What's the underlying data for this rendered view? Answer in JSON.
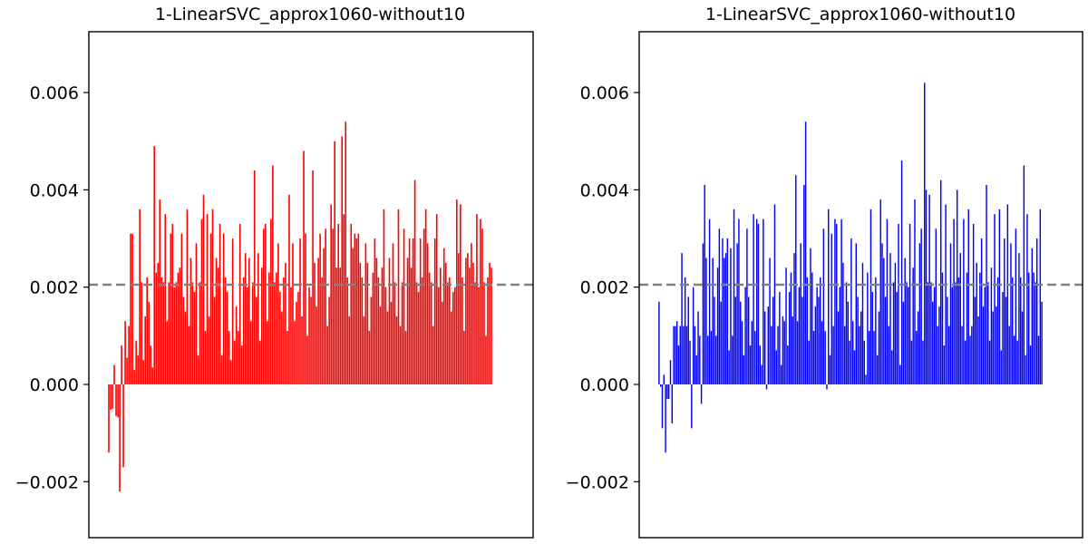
{
  "chart_data": [
    {
      "type": "bar",
      "title": "1-LinearSVC_approx1060-without10",
      "xlabel": "",
      "ylabel": "",
      "ylim": [
        -0.00315,
        0.00725
      ],
      "yticks": [
        -0.002,
        0.0,
        0.002,
        0.004,
        0.006
      ],
      "ytick_labels": [
        "−0.002",
        "0.000",
        "0.002",
        "0.004",
        "0.006"
      ],
      "xticks_visible": false,
      "grid": false,
      "legend": "none",
      "color": "#ff0000",
      "reference_line": {
        "y": 0.00205,
        "style": "dashed",
        "color": "#808080"
      },
      "values": [
        -0.0014,
        -0.00052,
        -0.0005,
        0.0004,
        -0.00065,
        -0.00068,
        -0.0022,
        0.0008,
        -0.0017,
        0.0013,
        0.00055,
        0.0012,
        0.0031,
        0.0031,
        0.0003,
        0.0009,
        0.0006,
        0.0036,
        0.0021,
        0.0005,
        0.0014,
        0.0022,
        0.0017,
        0.0008,
        0.00035,
        0.0049,
        0.0023,
        0.0025,
        0.0038,
        0.0022,
        0.0021,
        0.0035,
        0.0013,
        0.0021,
        0.0031,
        0.0033,
        0.002,
        0.0021,
        0.0023,
        0.0024,
        0.0031,
        0.0018,
        0.0015,
        0.0036,
        0.0012,
        0.0026,
        0.0021,
        0.0019,
        0.0029,
        0.0006,
        0.0021,
        0.0034,
        0.0039,
        0.0011,
        0.0035,
        0.0014,
        0.0031,
        0.0036,
        0.0018,
        0.0026,
        0.0024,
        0.0033,
        0.0006,
        0.0031,
        0.0022,
        0.0019,
        0.0011,
        0.0005,
        0.003,
        0.0009,
        0.0016,
        0.0011,
        0.0033,
        0.0008,
        0.0022,
        0.0027,
        0.002,
        0.0026,
        0.0013,
        0.0021,
        0.0044,
        0.0018,
        0.0027,
        0.0009,
        0.0024,
        0.0032,
        0.0033,
        0.0013,
        0.0023,
        0.0034,
        0.0045,
        0.0021,
        0.0023,
        0.0029,
        0.0019,
        0.0015,
        0.0022,
        0.0025,
        0.0011,
        0.0039,
        0.002,
        0.0029,
        0.0013,
        0.0017,
        0.0019,
        0.003,
        0.0014,
        0.0048,
        0.0031,
        0.001,
        0.002,
        0.0018,
        0.0044,
        0.0025,
        0.0016,
        0.0026,
        0.0031,
        0.0022,
        0.0028,
        0.0032,
        0.0012,
        0.0018,
        0.0037,
        0.0032,
        0.005,
        0.0024,
        0.0033,
        0.0024,
        0.0051,
        0.0035,
        0.0054,
        0.0022,
        0.0014,
        0.0033,
        0.0028,
        0.0031,
        0.003,
        0.0031,
        0.0025,
        0.0022,
        0.0014,
        0.0029,
        0.0025,
        0.0011,
        0.0018,
        0.0023,
        0.003,
        0.0026,
        0.0022,
        0.0016,
        0.0024,
        0.0036,
        0.002,
        0.0015,
        0.0026,
        0.0017,
        0.0029,
        0.0021,
        0.0014,
        0.0036,
        0.0012,
        0.0021,
        0.0032,
        0.0011,
        0.0026,
        0.003,
        0.0024,
        0.003,
        0.0042,
        0.0021,
        0.0019,
        0.003,
        0.0022,
        0.0032,
        0.0036,
        0.0029,
        0.0023,
        0.0021,
        0.0012,
        0.003,
        0.0035,
        0.002,
        0.0024,
        0.0017,
        0.0028,
        0.0025,
        0.0021,
        0.0022,
        0.0015,
        0.0019,
        0.002,
        0.0038,
        0.0027,
        0.0037,
        0.0022,
        0.0011,
        0.0026,
        0.0027,
        0.0024,
        0.0029,
        0.0025,
        0.0021,
        0.0035,
        0.002,
        0.0034,
        0.0032,
        0.0021,
        0.001,
        0.0022,
        0.0025,
        0.0024
      ]
    },
    {
      "type": "bar",
      "title": "1-LinearSVC_approx1060-without10",
      "xlabel": "",
      "ylabel": "",
      "ylim": [
        -0.00315,
        0.00725
      ],
      "yticks": [
        -0.002,
        0.0,
        0.002,
        0.004,
        0.006
      ],
      "ytick_labels": [
        "−0.002",
        "0.000",
        "0.002",
        "0.004",
        "0.006"
      ],
      "xticks_visible": false,
      "grid": false,
      "legend": "none",
      "color": "#0000ff",
      "reference_line": {
        "y": 0.00205,
        "style": "dashed",
        "color": "#808080"
      },
      "values": [
        0.0017,
        -5e-05,
        -0.0009,
        0.0002,
        -0.0014,
        -0.0003,
        -0.0003,
        0.0005,
        -0.0008,
        0.0012,
        0.0012,
        0.0013,
        0.0008,
        0.0012,
        0.0027,
        0.0012,
        0.0022,
        0.0012,
        0.0018,
        0.0009,
        -0.0009,
        0.002,
        0.0012,
        0.0006,
        0.0015,
        0.001,
        -0.0004,
        0.0029,
        0.0041,
        0.0026,
        0.001,
        0.0034,
        0.0011,
        0.0026,
        0.0018,
        0.001,
        0.0024,
        0.0032,
        0.0017,
        0.003,
        0.0026,
        0.0027,
        0.003,
        0.0007,
        0.0028,
        0.001,
        0.0036,
        0.0018,
        0.0029,
        0.0034,
        0.0017,
        0.0013,
        0.0006,
        0.002,
        0.0032,
        0.0018,
        0.0008,
        0.0013,
        0.0035,
        0.0011,
        0.0034,
        0.0033,
        0.0008,
        0.0004,
        0.0034,
        0.0015,
        -0.0001,
        0.0016,
        0.0026,
        0.0012,
        0.0018,
        0.0037,
        0.0007,
        0.0012,
        0.0019,
        0.0004,
        0.0014,
        0.0013,
        0.0024,
        0.0008,
        0.0019,
        0.0023,
        0.0014,
        0.0027,
        0.0043,
        0.0013,
        0.002,
        0.0029,
        0.0018,
        0.0041,
        0.0054,
        0.0022,
        0.0009,
        0.0028,
        0.0023,
        0.0011,
        0.0016,
        0.002,
        0.0018,
        0.0022,
        0.0013,
        0.0032,
        0.0011,
        -0.0001,
        0.0036,
        0.0006,
        0.0031,
        0.0012,
        0.0034,
        0.0033,
        0.0015,
        0.002,
        0.0034,
        0.0025,
        0.0012,
        0.0021,
        0.0017,
        0.0009,
        0.003,
        0.0013,
        0.0007,
        0.0029,
        0.0018,
        0.0012,
        0.0015,
        0.0025,
        0.0009,
        0.0002,
        0.0023,
        0.0011,
        0.0036,
        0.0019,
        0.0011,
        0.0022,
        0.0006,
        0.0015,
        0.0038,
        0.0029,
        0.0026,
        0.0018,
        0.0034,
        0.0012,
        0.0027,
        0.0007,
        0.0021,
        0.0025,
        0.0019,
        0.0033,
        0.0004,
        0.0046,
        0.0017,
        0.0026,
        0.0021,
        0.002,
        0.0033,
        0.0009,
        0.0024,
        0.0038,
        0.0011,
        0.0015,
        0.0029,
        0.0032,
        0.0009,
        0.0062,
        0.004,
        0.0021,
        0.0039,
        0.0021,
        0.0017,
        0.002,
        0.0032,
        0.0012,
        0.0016,
        0.0042,
        0.0023,
        0.0008,
        0.0037,
        0.0018,
        0.0012,
        0.0029,
        0.002,
        0.0034,
        0.0021,
        0.004,
        0.0022,
        0.0027,
        0.0012,
        0.0034,
        0.0009,
        0.0023,
        0.0036,
        0.001,
        0.0012,
        0.0033,
        0.0018,
        0.0025,
        0.0014,
        0.0023,
        0.003,
        0.0016,
        0.002,
        0.0041,
        0.0021,
        0.0009,
        0.0024,
        0.0015,
        0.0035,
        0.0016,
        0.0022,
        0.0036,
        0.0007,
        0.0019,
        0.003,
        0.0018,
        0.0037,
        0.0012,
        0.0029,
        0.0022,
        0.001,
        0.0032,
        0.0009,
        0.0027,
        0.0022,
        0.0015,
        0.0045,
        0.0006,
        0.0035,
        0.0023,
        0.0008,
        0.0028,
        0.0023,
        0.0021,
        0.003,
        0.001,
        0.0036,
        0.0017
      ]
    }
  ]
}
